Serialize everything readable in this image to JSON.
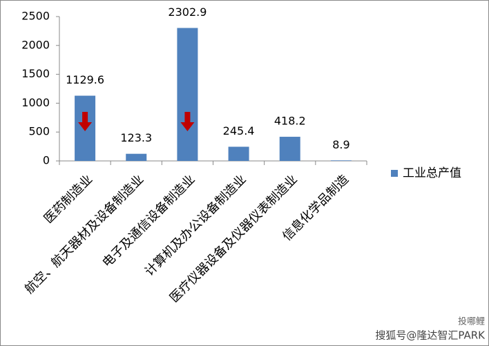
{
  "chart_data": {
    "type": "bar",
    "categories": [
      "医药制造业",
      "航空、航天器材及设备制造业",
      "电子及通信设备制造业",
      "计算机及办公设备制造业",
      "医疗仪器设备及仪器仪表制造业",
      "信息化学品制造"
    ],
    "series": [
      {
        "name": "工业总产值",
        "color": "#4f81bd",
        "values": [
          1129.6,
          123.3,
          2302.9,
          245.4,
          418.2,
          8.9
        ]
      }
    ],
    "ylim": [
      0,
      2500
    ],
    "yticks": [
      0,
      500,
      1000,
      1500,
      2000,
      2500
    ],
    "legend": "right",
    "watermark": [
      "投哪鲤",
      "搜狐号@隆达智汇PARK"
    ]
  }
}
